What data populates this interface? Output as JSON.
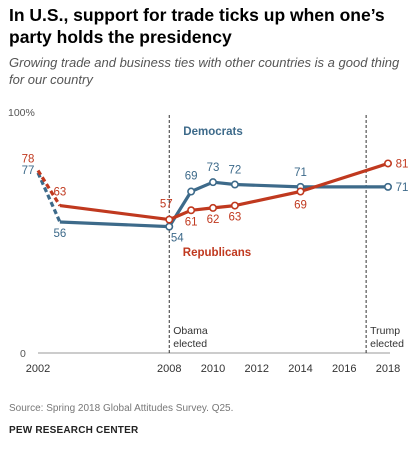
{
  "header": {
    "title": "In U.S., support for trade ticks up when one’s party holds the presidency",
    "subtitle": "Growing trade and business ties with other countries is a good thing for our country"
  },
  "chart_data": {
    "type": "line",
    "x": [
      2002,
      2003,
      2008,
      2009,
      2010,
      2011,
      2014,
      2018
    ],
    "series": [
      {
        "name": "Democrats",
        "values": [
          77,
          56,
          54,
          69,
          73,
          72,
          71,
          71
        ],
        "color": "#3d6a8a"
      },
      {
        "name": "Republicans",
        "values": [
          78,
          63,
          57,
          61,
          62,
          63,
          69,
          81
        ],
        "color": "#c0391f"
      }
    ],
    "xticks": [
      2002,
      2008,
      2010,
      2012,
      2014,
      2016,
      2018
    ],
    "xlim": [
      2002,
      2018
    ],
    "ylim": [
      0,
      100
    ],
    "yticks": [
      {
        "value": 100,
        "label": "100%"
      },
      {
        "value": 0,
        "label": "0"
      }
    ],
    "labels": {
      "democrats": [
        {
          "year": 2002,
          "text": "77"
        },
        {
          "year": 2003,
          "text": "56"
        },
        {
          "year": 2008,
          "text": "54"
        },
        {
          "year": 2009,
          "text": "69"
        },
        {
          "year": 2010,
          "text": "73"
        },
        {
          "year": 2011,
          "text": "72"
        },
        {
          "year": 2014,
          "text": "71"
        },
        {
          "year": 2018,
          "text": "71"
        }
      ],
      "republicans": [
        {
          "year": 2002,
          "text": "78"
        },
        {
          "year": 2003,
          "text": "63"
        },
        {
          "year": 2008,
          "text": "57"
        },
        {
          "year": 2009,
          "text": "61"
        },
        {
          "year": 2010,
          "text": "62"
        },
        {
          "year": 2011,
          "text": "63"
        },
        {
          "year": 2014,
          "text": "69"
        },
        {
          "year": 2018,
          "text": "81"
        }
      ]
    },
    "annotations": [
      {
        "year": 2008,
        "lines": [
          "Obama",
          "elected"
        ]
      },
      {
        "year": 2017,
        "lines": [
          "Trump",
          "elected"
        ]
      }
    ],
    "grid": false,
    "dashed_segment_years": [
      2002,
      2003
    ]
  },
  "footer": {
    "source": "Source: Spring 2018 Global Attitudes Survey. Q25.",
    "org": "PEW RESEARCH CENTER"
  }
}
